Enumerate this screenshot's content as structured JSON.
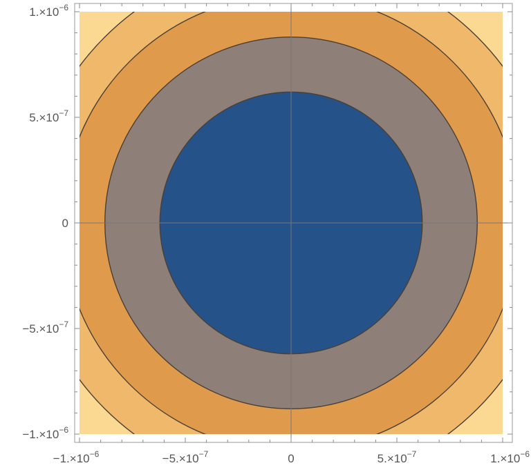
{
  "chart_data": {
    "type": "contour",
    "title": "",
    "xlabel": "",
    "ylabel": "",
    "xlim": [
      -1e-06,
      1e-06
    ],
    "ylim": [
      -1e-06,
      1e-06
    ],
    "grid": false,
    "legend": "none",
    "contour_center": [
      0,
      0
    ],
    "contour_radii": [
      6.2e-07,
      8.8e-07,
      1.08e-06,
      1.245e-06
    ],
    "region_colors": [
      "#26528a",
      "#8e7f78",
      "#e09a4c",
      "#efb86b",
      "#fcd993"
    ],
    "line_color": "#4a3f33",
    "axis_color": "#777777",
    "x_ticks": [
      {
        "value": -1e-06,
        "mantissa": "−1.×10",
        "exponent": "−6"
      },
      {
        "value": -5e-07,
        "mantissa": "−5.×10",
        "exponent": "−7"
      },
      {
        "value": 0,
        "mantissa": "0",
        "exponent": ""
      },
      {
        "value": 5e-07,
        "mantissa": "5.×10",
        "exponent": "−7"
      },
      {
        "value": 1e-06,
        "mantissa": "1.×10",
        "exponent": "−6"
      }
    ],
    "y_ticks": [
      {
        "value": 1e-06,
        "mantissa": "1.×10",
        "exponent": "−6"
      },
      {
        "value": 5e-07,
        "mantissa": "5.×10",
        "exponent": "−7"
      },
      {
        "value": 0,
        "mantissa": "0",
        "exponent": ""
      },
      {
        "value": -5e-07,
        "mantissa": "−5.×10",
        "exponent": "−7"
      },
      {
        "value": -1e-06,
        "mantissa": "−1.×10",
        "exponent": "−6"
      }
    ]
  }
}
